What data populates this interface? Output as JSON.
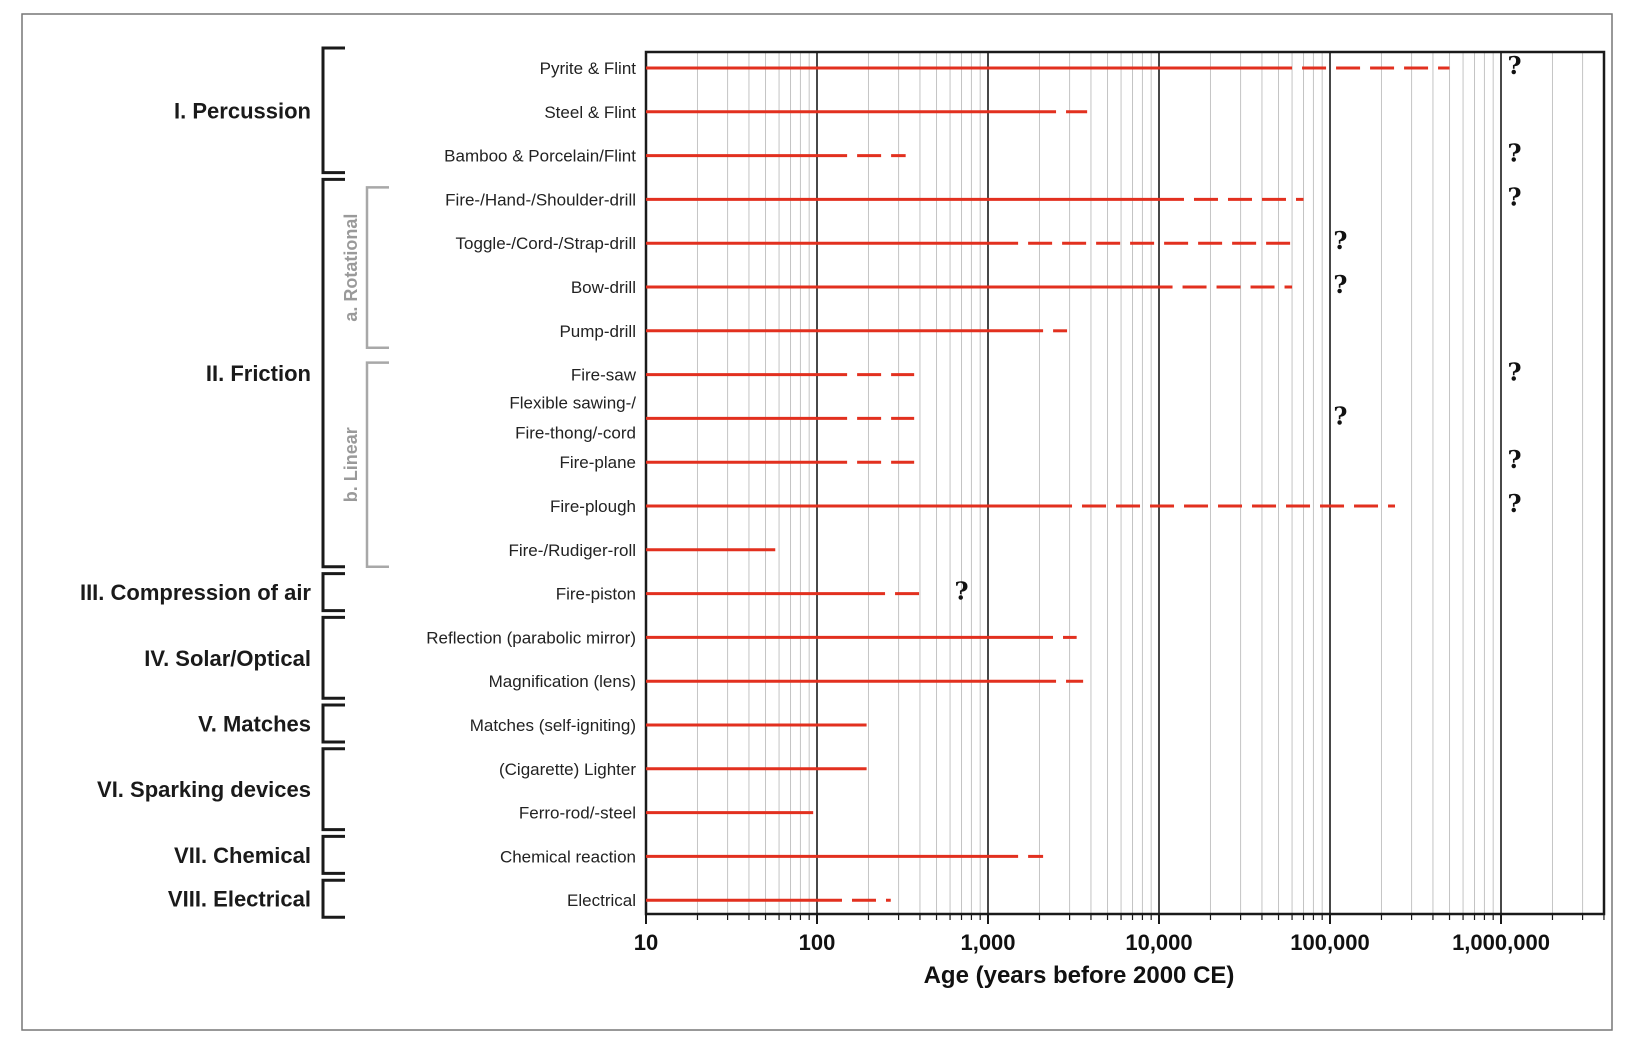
{
  "colors": {
    "bar": "#e2301f",
    "bracket": "#1a1a1a",
    "subbracket": "#a8a8a8",
    "grid_major": "#1a1a1a",
    "grid_minor": "#c4c4c4",
    "frame": "#777777"
  },
  "chart_data": {
    "type": "range-bar",
    "xlabel": "Age (years before 2000 CE)",
    "xscale": "log",
    "xlim": [
      10,
      4000000
    ],
    "xticks": [
      "10",
      "100",
      "1,000",
      "10,000",
      "100,000",
      "1,000,000"
    ],
    "grid": true,
    "groups": [
      {
        "label": "I. Percussion",
        "rows": [
          0,
          2
        ]
      },
      {
        "label": "II. Friction",
        "rows": [
          3,
          11
        ]
      },
      {
        "label": "III. Compression of air",
        "rows": [
          12,
          12
        ]
      },
      {
        "label": "IV. Solar/Optical",
        "rows": [
          13,
          14
        ]
      },
      {
        "label": "V. Matches",
        "rows": [
          15,
          15
        ]
      },
      {
        "label": "VI. Sparking devices",
        "rows": [
          16,
          17
        ]
      },
      {
        "label": "VII. Chemical",
        "rows": [
          18,
          18
        ]
      },
      {
        "label": "VIII. Electrical",
        "rows": [
          19,
          19
        ]
      }
    ],
    "subgroups": [
      {
        "label": "a. Rotational",
        "rows": [
          3,
          6
        ]
      },
      {
        "label": "b. Linear",
        "rows": [
          7,
          11
        ]
      }
    ],
    "series": [
      {
        "label": "Pyrite & Flint",
        "solid_to": 60000,
        "dashed_to": 500000,
        "question_at": 1200000
      },
      {
        "label": "Steel & Flint",
        "solid_to": 2500,
        "dashed_to": 3800
      },
      {
        "label": "Bamboo & Porcelain/Flint",
        "solid_to": 150,
        "dashed_to": 330,
        "question_at": 1200000
      },
      {
        "label": "Fire-/Hand-/Shoulder-drill",
        "solid_to": 14000,
        "dashed_to": 70000,
        "question_at": 1200000
      },
      {
        "label": "Toggle-/Cord-/Strap-drill",
        "solid_to": 1500,
        "dashed_to": 60000,
        "question_at": 115000
      },
      {
        "label": "Bow-drill",
        "solid_to": 12000,
        "dashed_to": 60000,
        "question_at": 115000
      },
      {
        "label": "Pump-drill",
        "solid_to": 2100,
        "dashed_to": 2900
      },
      {
        "label": "Fire-saw",
        "solid_to": 150,
        "dashed_to": 370,
        "question_at": 1200000
      },
      {
        "label": "Flexible sawing-/\nFire-thong/-cord",
        "solid_to": 150,
        "dashed_to": 370,
        "question_at": 115000
      },
      {
        "label": "Fire-plane",
        "solid_to": 150,
        "dashed_to": 370,
        "question_at": 1200000
      },
      {
        "label": "Fire-plough",
        "solid_to": 3100,
        "dashed_to": 240000,
        "question_at": 1200000
      },
      {
        "label": "Fire-/Rudiger-roll",
        "solid_to": 57
      },
      {
        "label": "Fire-piston",
        "solid_to": 250,
        "dashed_to": 420,
        "question_at": 700
      },
      {
        "label": "Reflection (parabolic mirror)",
        "solid_to": 2400,
        "dashed_to": 3300
      },
      {
        "label": "Magnification (lens)",
        "solid_to": 2500,
        "dashed_to": 3600
      },
      {
        "label": "Matches (self-igniting)",
        "solid_to": 195
      },
      {
        "label": "(Cigarette) Lighter",
        "solid_to": 195
      },
      {
        "label": "Ferro-rod/-steel",
        "solid_to": 95
      },
      {
        "label": "Chemical reaction",
        "solid_to": 1500,
        "dashed_to": 2100
      },
      {
        "label": "Electrical",
        "solid_to": 140,
        "dashed_to": 270
      }
    ],
    "question_mark": "?"
  }
}
